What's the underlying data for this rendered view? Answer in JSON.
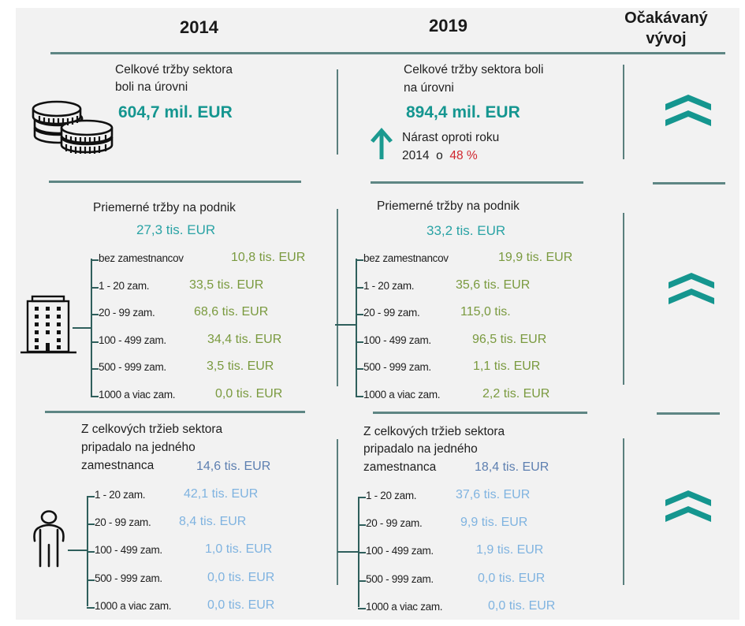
{
  "header": {
    "col_2014": "2014",
    "col_2019": "2019",
    "col_trend_line1": "Očakávaný",
    "col_trend_line2": "vývoj"
  },
  "colors": {
    "teal": "#159690",
    "green_values": "#7a9a3f",
    "blue_dark_values": "#5d7fb0",
    "blue_light_values": "#7fb3e0",
    "red_highlight": "#d0262e"
  },
  "section_total": {
    "icon": "coins-icon",
    "y2014": {
      "line1": "Celkové tržby sektora",
      "line2": "boli na úrovni",
      "value": "604,7 mil. EUR"
    },
    "y2019": {
      "line1": "Celkové tržby sektora boli",
      "line2": "na úrovni",
      "value": "894,4 mil. EUR",
      "growth_line1": "Nárast oproti roku",
      "growth_line2_prefix": "2014  o",
      "growth_pct": "48 %",
      "growth_icon": "arrow-up-icon"
    },
    "trend_icon": "double-chevron-up-icon"
  },
  "section_avg_per_company": {
    "icon": "building-icon",
    "title": "Priemerné tržby na podnik",
    "y2014": {
      "value": "27,3 tis. EUR",
      "rows": [
        {
          "label": "bez zamestnancov",
          "value": "10,8 tis. EUR"
        },
        {
          "label": "1 - 20 zam.",
          "value": "33,5 tis. EUR"
        },
        {
          "label": "20 - 99 zam.",
          "value": "68,6 tis. EUR"
        },
        {
          "label": "100 - 499 zam.",
          "value": "34,4 tis. EUR"
        },
        {
          "label": "500 - 999 zam.",
          "value": "3,5 tis. EUR"
        },
        {
          "label": "1000 a viac zam.",
          "value": "0,0 tis. EUR"
        }
      ]
    },
    "y2019": {
      "value": "33,2 tis. EUR",
      "rows": [
        {
          "label": "bez zamestnancov",
          "value": "19,9 tis. EUR"
        },
        {
          "label": "1 - 20 zam.",
          "value": "35,6 tis. EUR"
        },
        {
          "label": "20 - 99 zam.",
          "value": "115,0 tis."
        },
        {
          "label": "100 - 499 zam.",
          "value": "96,5 tis. EUR"
        },
        {
          "label": "500 - 999 zam.",
          "value": "1,1 tis. EUR"
        },
        {
          "label": "1000 a viac zam.",
          "value": "2,2 tis. EUR"
        }
      ]
    },
    "trend_icon": "double-chevron-up-icon"
  },
  "section_per_employee": {
    "icon": "person-icon",
    "title_line1": "Z celkových tržieb sektora",
    "title_line2": "pripadalo na jedného",
    "title_line3": "zamestnanca",
    "y2014": {
      "value": "14,6 tis. EUR",
      "rows": [
        {
          "label": "1 - 20 zam.",
          "value": "42,1 tis. EUR"
        },
        {
          "label": "20 - 99 zam.",
          "value": "8,4 tis. EUR"
        },
        {
          "label": "100 - 499 zam.",
          "value": "1,0 tis. EUR"
        },
        {
          "label": "500 - 999 zam.",
          "value": "0,0 tis. EUR"
        },
        {
          "label": "1000 a viac zam.",
          "value": "0,0 tis. EUR"
        }
      ]
    },
    "y2019": {
      "value": "18,4 tis. EUR",
      "rows": [
        {
          "label": "1 - 20 zam.",
          "value": "37,6 tis. EUR"
        },
        {
          "label": "20 - 99 zam.",
          "value": "9,9 tis. EUR"
        },
        {
          "label": "100 - 499 zam.",
          "value": "1,9 tis. EUR"
        },
        {
          "label": "500 - 999 zam.",
          "value": "0,0 tis. EUR"
        },
        {
          "label": "1000 a viac zam.",
          "value": "0,0 tis. EUR"
        }
      ]
    },
    "trend_icon": "double-chevron-up-icon"
  }
}
